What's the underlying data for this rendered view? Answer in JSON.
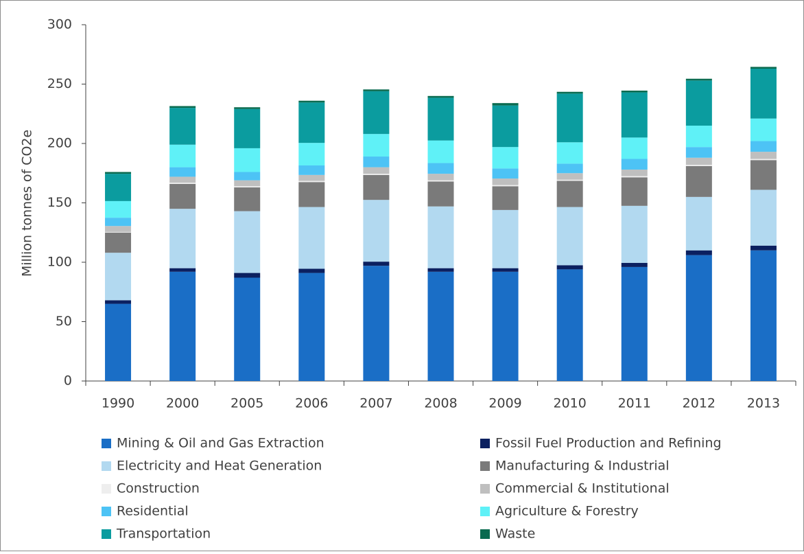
{
  "chart_data": {
    "type": "stacked_bar",
    "y_label": "Million tonnes of CO2e",
    "categories": [
      "1990",
      "2000",
      "2005",
      "2006",
      "2007",
      "2008",
      "2009",
      "2010",
      "2011",
      "2012",
      "2013"
    ],
    "ylim": [
      0,
      300
    ],
    "yticks": [
      0,
      50,
      100,
      150,
      200,
      250,
      300
    ],
    "series": [
      {
        "name": "Mining & Oil and Gas Extraction",
        "color": "#1a6ec6",
        "values": [
          65,
          92,
          87,
          91,
          97,
          92,
          92,
          94,
          96,
          106,
          110
        ]
      },
      {
        "name": "Fossil Fuel Production and Refining",
        "color": "#0b2060",
        "values": [
          3,
          3,
          4,
          3.5,
          3.5,
          3,
          3,
          3.5,
          3.5,
          4,
          4
        ]
      },
      {
        "name": "Electricity and Heat Generation",
        "color": "#b2d9f0",
        "values": [
          40,
          50,
          52,
          52,
          52,
          52,
          49,
          49,
          48,
          45,
          47
        ]
      },
      {
        "name": "Manufacturing & Industrial",
        "color": "#7a7a7a",
        "values": [
          17,
          21,
          20,
          21,
          21,
          21,
          20,
          22,
          24,
          26,
          25
        ]
      },
      {
        "name": "Construction",
        "color": "#eeeeee",
        "values": [
          0.5,
          1,
          1,
          1,
          1,
          1,
          1,
          1,
          1,
          1,
          1
        ]
      },
      {
        "name": "Commercial & Institutional",
        "color": "#bfbfbf",
        "values": [
          5,
          5,
          5,
          5,
          5.5,
          5.5,
          5.5,
          5.5,
          5.5,
          6,
          6
        ]
      },
      {
        "name": "Residential",
        "color": "#4dc3f5",
        "values": [
          7,
          8,
          7,
          8,
          9,
          9,
          8.5,
          8,
          9,
          9,
          9
        ]
      },
      {
        "name": "Agriculture & Forestry",
        "color": "#5ff1f7",
        "values": [
          14,
          19,
          20,
          19,
          19,
          19,
          18,
          18,
          18,
          18,
          19
        ]
      },
      {
        "name": "Transportation",
        "color": "#0b9c9f",
        "values": [
          23,
          31,
          33,
          34,
          36,
          36,
          35,
          41,
          38,
          38,
          42
        ]
      },
      {
        "name": "Waste",
        "color": "#0a6b50",
        "values": [
          1.5,
          1.5,
          1.5,
          1.5,
          1.5,
          1.5,
          2,
          1.5,
          1.5,
          1.5,
          1.5
        ]
      }
    ]
  }
}
